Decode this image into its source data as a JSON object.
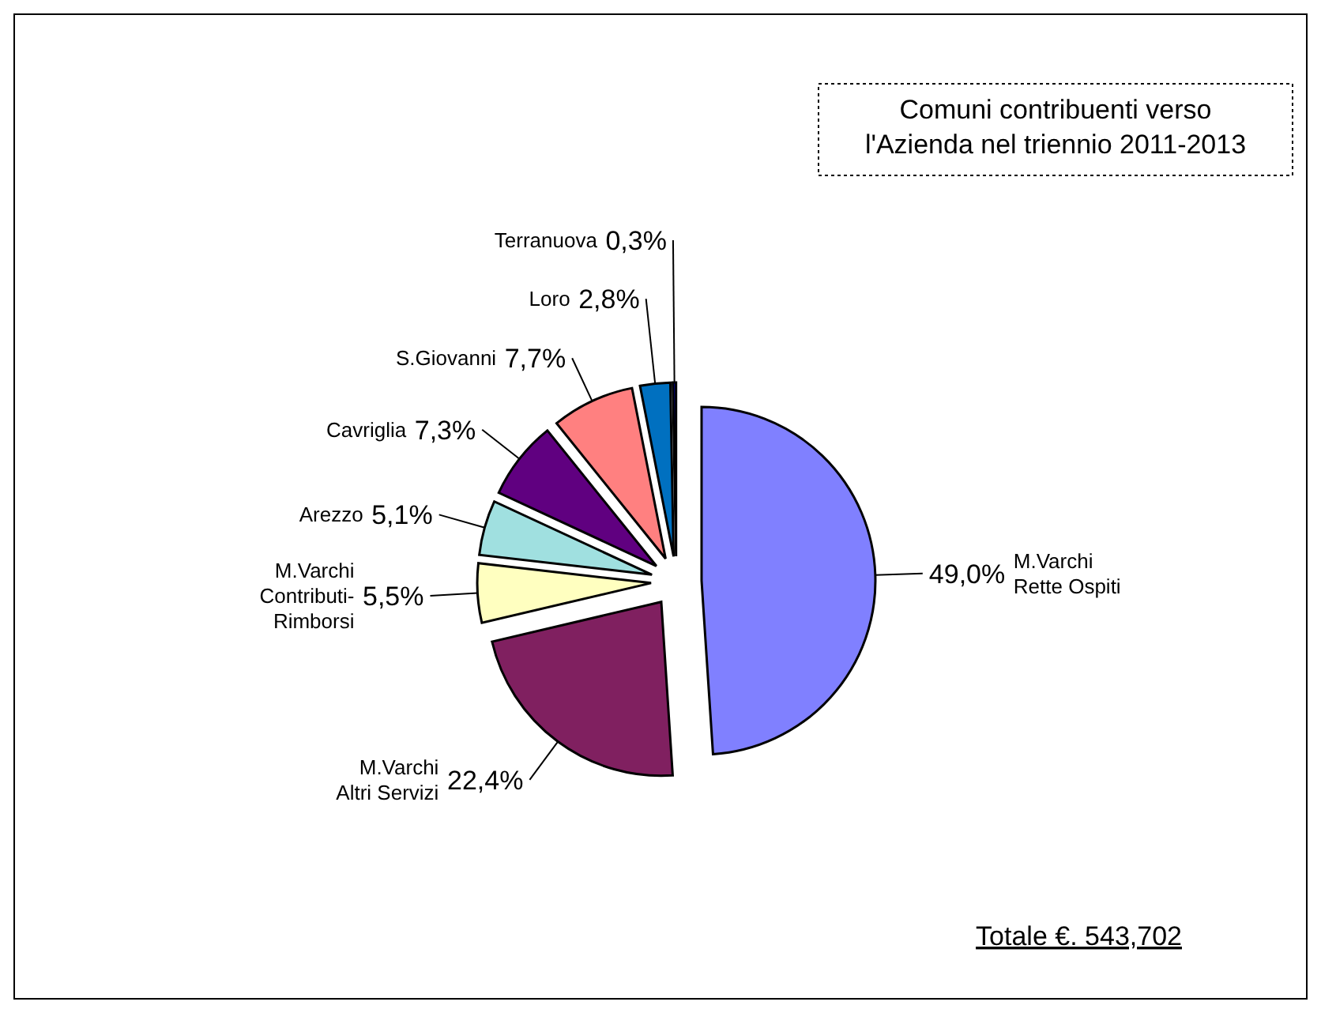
{
  "chart_data": {
    "type": "pie",
    "title": "Comuni contribuenti verso\nl'Azienda nel triennio 2011-2013",
    "categories": [
      "M.Varchi\nRette Ospiti",
      "M.Varchi\nAltri Servizi",
      "M.Varchi\nContributi-\nRimborsi",
      "Arezzo",
      "Cavriglia",
      "S.Giovanni",
      "Loro",
      "Terranuova"
    ],
    "values": [
      49.0,
      22.4,
      5.5,
      5.1,
      7.3,
      7.7,
      2.8,
      0.3
    ],
    "value_labels": [
      "49,0%",
      "22,4%",
      "5,5%",
      "5,1%",
      "7,3%",
      "7,7%",
      "2,8%",
      "0,3%"
    ],
    "colors": [
      "#8080ff",
      "#802060",
      "#ffffc0",
      "#a0e0e0",
      "#600080",
      "#ff8080",
      "#0070c0",
      "#000080"
    ],
    "legend": false,
    "annotations": [
      "Totale €. 543,702"
    ]
  }
}
